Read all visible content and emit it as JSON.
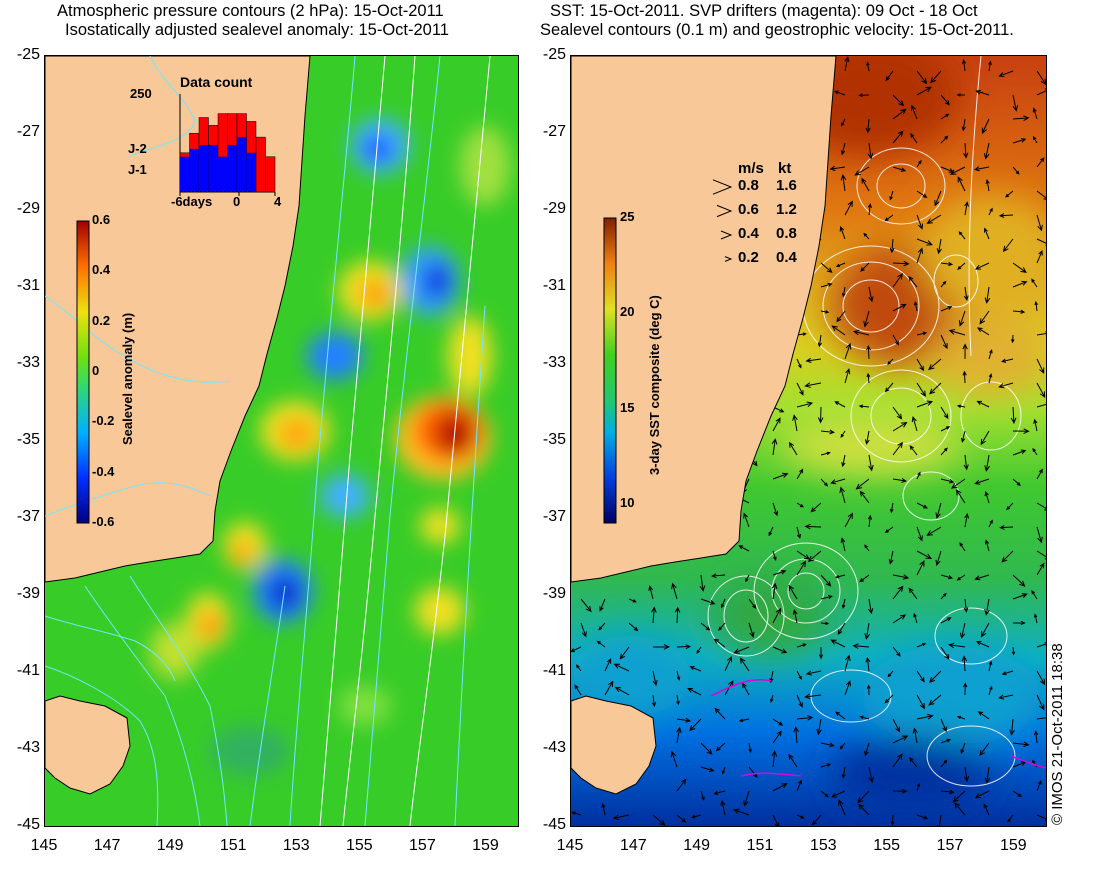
{
  "left": {
    "title_line1": "Atmospheric pressure contours (2 hPa): 15-Oct-2011",
    "title_line2": "Isostatically adjusted sealevel anomaly: 15-Oct-2011",
    "inset": {
      "title": "Data count",
      "y_max": "250",
      "series_a": "J-2",
      "series_b": "J-1",
      "x_start": "-6days",
      "x_mid": "0",
      "x_end": "4",
      "colors": {
        "J-2": "#ff0000",
        "J-1": "#0000ff"
      },
      "bins": [
        -6,
        -5,
        -4,
        -3,
        -2,
        -1,
        0,
        1,
        2,
        3
      ],
      "counts_a": [
        100,
        150,
        190,
        170,
        200,
        200,
        200,
        180,
        140,
        90
      ],
      "counts_b": [
        90,
        110,
        120,
        120,
        90,
        120,
        140,
        100,
        0,
        0
      ]
    },
    "colorbar": {
      "label": "Sealevel anomaly (m)",
      "ticks": [
        "0.6",
        "0.4",
        "0.2",
        "0",
        "-0.2",
        "-0.4",
        "-0.6"
      ]
    }
  },
  "right": {
    "title_line1": "SST: 15-Oct-2011. SVP drifters (magenta): 09 Oct - 18 Oct",
    "title_line2": "Sealevel contours (0.1 m) and geostrophic velocity: 15-Oct-2011.",
    "colorbar": {
      "label": "3-day SST composite (deg C)",
      "ticks": [
        "25",
        "20",
        "15",
        "10"
      ],
      "range": [
        9,
        25
      ]
    },
    "key": {
      "header_ms": "m/s",
      "header_kt": "kt",
      "rows": [
        {
          "ms": "0.8",
          "kt": "1.6"
        },
        {
          "ms": "0.6",
          "kt": "1.2"
        },
        {
          "ms": "0.4",
          "kt": "0.8"
        },
        {
          "ms": "0.2",
          "kt": "0.4"
        }
      ]
    }
  },
  "axes": {
    "lat_ticks": [
      "-25",
      "-27",
      "-29",
      "-31",
      "-33",
      "-35",
      "-37",
      "-39",
      "-41",
      "-43",
      "-45"
    ],
    "lon_ticks": [
      "145",
      "147",
      "149",
      "151",
      "153",
      "155",
      "157",
      "159"
    ],
    "lat_range": [
      -45,
      -25
    ],
    "lon_range": [
      145,
      160
    ]
  },
  "copyright": "© IMOS 21-Oct-2011 18:38"
}
